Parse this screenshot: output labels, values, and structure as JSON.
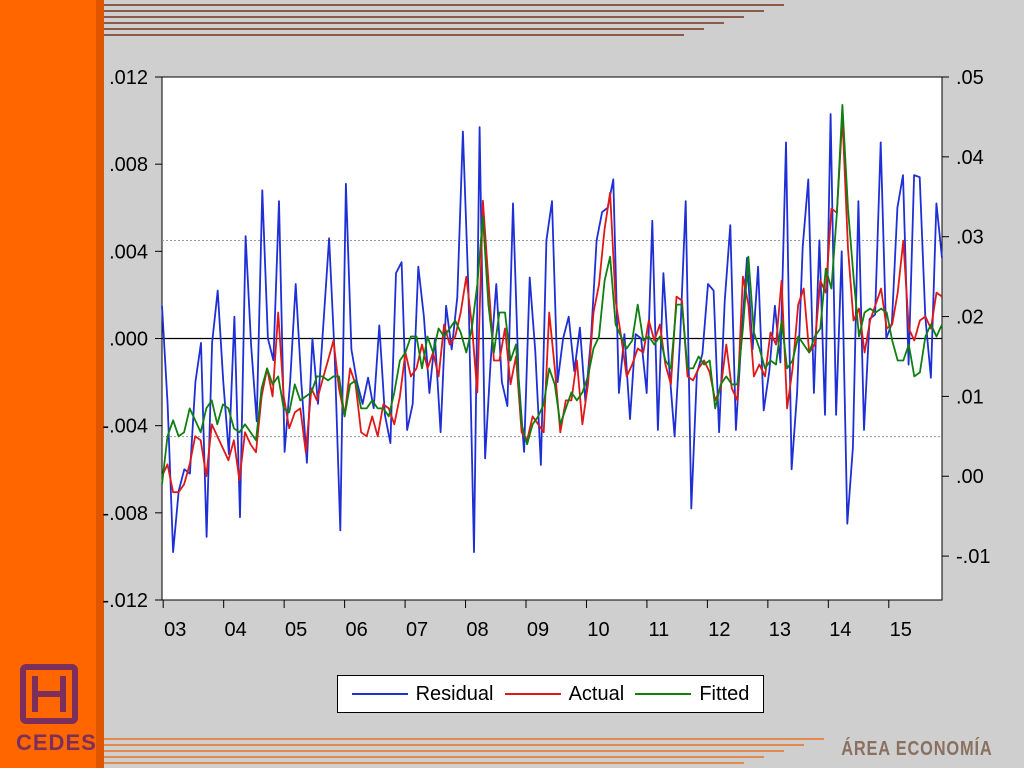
{
  "colors": {
    "residual": "#1f2fd6",
    "actual": "#e01818",
    "fitted": "#0f7f10",
    "sidebar": "#ff6600",
    "logo": "#7b2f5a"
  },
  "branding": {
    "logo_text": "CEDES",
    "area_label": "ÁREA ECONOMÍA"
  },
  "chart_data": {
    "type": "line",
    "title": "",
    "xlabel": "",
    "left_ylabel": "",
    "right_ylabel": "",
    "x_start_year": 2003,
    "x_end_year": 2015.9,
    "x_ticks": [
      "03",
      "04",
      "05",
      "06",
      "07",
      "08",
      "09",
      "10",
      "11",
      "12",
      "13",
      "14",
      "15"
    ],
    "x_tick_years": [
      2003,
      2004,
      2005,
      2006,
      2007,
      2008,
      2009,
      2010,
      2011,
      2012,
      2013,
      2014,
      2015
    ],
    "left_axis": {
      "ylim": [
        -0.012,
        0.012
      ],
      "ticks": [
        ".012",
        ".008",
        ".004",
        ".000",
        "-.004",
        "-.008",
        "-.012"
      ],
      "tick_values": [
        0.012,
        0.008,
        0.004,
        0.0,
        -0.004,
        -0.008,
        -0.012
      ],
      "reference_lines": [
        0.0
      ],
      "dashed_lines": [
        0.0045,
        -0.0045
      ]
    },
    "right_axis": {
      "ylim": [
        -0.0155,
        0.05
      ],
      "ticks": [
        ".05",
        ".04",
        ".03",
        ".02",
        ".01",
        ".00",
        "-.01"
      ],
      "tick_values": [
        0.05,
        0.04,
        0.03,
        0.02,
        0.01,
        0.0,
        -0.01
      ]
    },
    "legend": {
      "position": "bottom-center",
      "entries": [
        "Residual",
        "Actual",
        "Fitted"
      ]
    },
    "grid": false,
    "series": [
      {
        "name": "Residual",
        "axis": "left",
        "key": "residual",
        "values": [
          0.0015,
          -0.003,
          -0.0098,
          -0.007,
          -0.006,
          -0.0062,
          -0.002,
          -0.0002,
          -0.0091,
          -0.0002,
          0.0022,
          -0.002,
          -0.0053,
          0.001,
          -0.0082,
          0.0047,
          -0.0003,
          -0.0038,
          0.0068,
          0.0,
          -0.001,
          0.0063,
          -0.0052,
          -0.002,
          0.0025,
          -0.002,
          -0.0057,
          0.0,
          -0.003,
          0.0008,
          0.0046,
          -0.0008,
          -0.0088,
          0.0071,
          -0.0005,
          -0.002,
          -0.003,
          -0.0018,
          -0.0032,
          0.0006,
          -0.0035,
          -0.0048,
          0.003,
          0.0035,
          -0.0042,
          -0.003,
          0.0033,
          0.001,
          -0.0025,
          0.0,
          -0.0043,
          0.0015,
          -0.0005,
          0.0019,
          0.0095,
          0.0023,
          -0.0098,
          0.0097,
          -0.0055,
          -0.001,
          0.0025,
          -0.002,
          -0.0031,
          0.0062,
          -0.0018,
          -0.0052,
          0.0028,
          -0.0006,
          -0.0058,
          0.0045,
          0.0063,
          -0.002,
          0.0,
          0.001,
          -0.0015,
          0.0005,
          -0.0029,
          0.0,
          0.0045,
          0.0058,
          0.006,
          0.0073,
          -0.0025,
          0.0002,
          -0.0037,
          0.0002,
          0.0,
          -0.0025,
          0.0054,
          -0.0042,
          0.003,
          -0.0012,
          -0.0045,
          0.0,
          0.0063,
          -0.0078,
          -0.0016,
          -0.0007,
          0.0025,
          0.0022,
          -0.0043,
          0.0017,
          0.0052,
          -0.0042,
          0.0,
          0.0037,
          -0.0005,
          0.0033,
          -0.0033,
          -0.0015,
          0.0015,
          -0.0011,
          0.009,
          -0.006,
          -0.0025,
          0.0042,
          0.0073,
          -0.0025,
          0.0045,
          -0.0035,
          0.0103,
          -0.0035,
          0.004,
          -0.0085,
          -0.005,
          0.0063,
          -0.0042,
          0.0009,
          0.0011,
          0.009,
          0.0,
          0.0007,
          0.006,
          0.0075,
          -0.0012,
          0.0075,
          0.0074,
          0.001,
          -0.0018,
          0.0062,
          0.0037
        ]
      },
      {
        "name": "Actual",
        "axis": "right",
        "key": "actual",
        "values": [
          0.0,
          0.0015,
          -0.002,
          -0.002,
          -0.001,
          0.0015,
          0.005,
          0.0045,
          0.0,
          0.0065,
          0.005,
          0.0035,
          0.002,
          0.0045,
          -0.0005,
          0.0055,
          0.004,
          0.003,
          0.01,
          0.0135,
          0.01,
          0.0205,
          0.01,
          0.006,
          0.008,
          0.0085,
          0.003,
          0.011,
          0.0095,
          0.012,
          0.0145,
          0.017,
          0.011,
          0.0075,
          0.0135,
          0.0115,
          0.0055,
          0.005,
          0.0075,
          0.005,
          0.009,
          0.0085,
          0.0065,
          0.01,
          0.0155,
          0.0125,
          0.0135,
          0.0165,
          0.0135,
          0.0155,
          0.0125,
          0.019,
          0.0165,
          0.0175,
          0.0205,
          0.025,
          0.019,
          0.0105,
          0.0345,
          0.0245,
          0.0145,
          0.0145,
          0.0185,
          0.0115,
          0.015,
          0.0055,
          0.0045,
          0.0075,
          0.0065,
          0.0055,
          0.0205,
          0.0135,
          0.0055,
          0.0095,
          0.0095,
          0.0145,
          0.0065,
          0.0115,
          0.0205,
          0.024,
          0.031,
          0.0355,
          0.022,
          0.0175,
          0.0125,
          0.014,
          0.016,
          0.0155,
          0.0195,
          0.017,
          0.019,
          0.014,
          0.0115,
          0.0225,
          0.022,
          0.0125,
          0.012,
          0.0135,
          0.0145,
          0.013,
          0.0095,
          0.011,
          0.0165,
          0.011,
          0.0095,
          0.025,
          0.0215,
          0.0125,
          0.014,
          0.0125,
          0.018,
          0.0165,
          0.0245,
          0.0085,
          0.0135,
          0.0215,
          0.0235,
          0.0155,
          0.0165,
          0.0245,
          0.023,
          0.0335,
          0.033,
          0.045,
          0.0285,
          0.0195,
          0.021,
          0.0155,
          0.0195,
          0.0215,
          0.0235,
          0.0185,
          0.019,
          0.023,
          0.0295,
          0.0185,
          0.017,
          0.0195,
          0.02,
          0.0185,
          0.023,
          0.0225
        ]
      },
      {
        "name": "Fitted",
        "axis": "right",
        "key": "fitted",
        "values": [
          -0.001,
          0.005,
          0.007,
          0.005,
          0.0055,
          0.0085,
          0.007,
          0.0055,
          0.0085,
          0.0095,
          0.0065,
          0.009,
          0.0085,
          0.006,
          0.0055,
          0.0065,
          0.0055,
          0.0045,
          0.011,
          0.0135,
          0.0115,
          0.0125,
          0.0085,
          0.008,
          0.0115,
          0.0095,
          0.01,
          0.0105,
          0.0125,
          0.0125,
          0.012,
          0.0125,
          0.0125,
          0.0075,
          0.0115,
          0.012,
          0.0085,
          0.0085,
          0.0095,
          0.0085,
          0.0085,
          0.0075,
          0.0105,
          0.0145,
          0.0155,
          0.0175,
          0.0175,
          0.0135,
          0.0175,
          0.0155,
          0.0185,
          0.0175,
          0.0185,
          0.0195,
          0.018,
          0.0155,
          0.0185,
          0.024,
          0.0325,
          0.0215,
          0.0155,
          0.0205,
          0.0205,
          0.0145,
          0.0165,
          0.0065,
          0.004,
          0.0065,
          0.0075,
          0.009,
          0.0135,
          0.0115,
          0.0065,
          0.0085,
          0.0105,
          0.0095,
          0.0105,
          0.0125,
          0.016,
          0.0175,
          0.0245,
          0.0275,
          0.019,
          0.0175,
          0.016,
          0.017,
          0.0215,
          0.017,
          0.0175,
          0.0165,
          0.0175,
          0.0145,
          0.0135,
          0.0215,
          0.0215,
          0.0135,
          0.0135,
          0.015,
          0.014,
          0.0145,
          0.0085,
          0.0115,
          0.0125,
          0.0115,
          0.0115,
          0.0185,
          0.0275,
          0.018,
          0.016,
          0.0135,
          0.0145,
          0.014,
          0.0195,
          0.0135,
          0.0145,
          0.0175,
          0.0165,
          0.0155,
          0.0175,
          0.0185,
          0.026,
          0.0235,
          0.033,
          0.0465,
          0.0335,
          0.025,
          0.0175,
          0.0205,
          0.021,
          0.0205,
          0.021,
          0.0205,
          0.017,
          0.0145,
          0.0145,
          0.0165,
          0.0125,
          0.013,
          0.0175,
          0.019,
          0.0175,
          0.019
        ]
      }
    ]
  }
}
